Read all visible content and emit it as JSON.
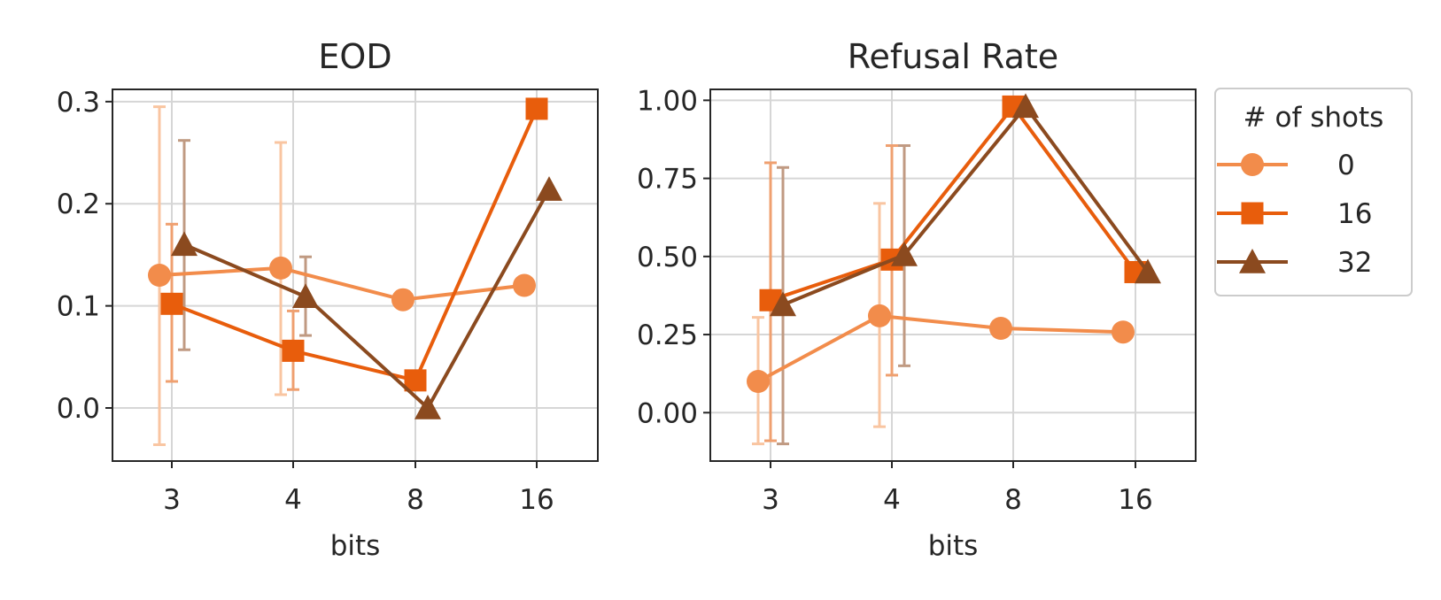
{
  "chart_data": [
    {
      "type": "line",
      "title": "EOD",
      "xlabel": "bits",
      "ylabel": "",
      "categories": [
        "3",
        "4",
        "8",
        "16"
      ],
      "ylim": [
        -0.052,
        0.312
      ],
      "yticks": [
        0.0,
        0.1,
        0.2,
        0.3
      ],
      "ytick_labels": [
        "0.0",
        "0.1",
        "0.2",
        "0.3"
      ],
      "grid": true,
      "series": [
        {
          "name": "0",
          "marker": "circle",
          "color": "#f28c4b",
          "err_color": "#f9c5a1",
          "values": [
            0.13,
            0.137,
            0.106,
            0.12
          ],
          "err_low": [
            -0.036,
            0.013,
            null,
            null
          ],
          "err_high": [
            0.295,
            0.26,
            null,
            null
          ]
        },
        {
          "name": "16",
          "marker": "square",
          "color": "#e85d0c",
          "err_color": "#efa070",
          "values": [
            0.102,
            0.056,
            0.027,
            0.293
          ],
          "err_low": [
            0.026,
            0.018,
            null,
            null
          ],
          "err_high": [
            0.18,
            0.095,
            null,
            null
          ]
        },
        {
          "name": "32",
          "marker": "triangle",
          "color": "#8b4a1f",
          "err_color": "#c09a82",
          "values": [
            0.16,
            0.109,
            0.0,
            0.214
          ],
          "err_low": [
            0.057,
            0.071,
            null,
            null
          ],
          "err_high": [
            0.262,
            0.148,
            null,
            null
          ]
        }
      ]
    },
    {
      "type": "line",
      "title": "Refusal Rate",
      "xlabel": "bits",
      "ylabel": "",
      "categories": [
        "3",
        "4",
        "8",
        "16"
      ],
      "ylim": [
        -0.155,
        1.035
      ],
      "yticks": [
        0.0,
        0.25,
        0.5,
        0.75,
        1.0
      ],
      "ytick_labels": [
        "0.00",
        "0.25",
        "0.50",
        "0.75",
        "1.00"
      ],
      "grid": true,
      "series": [
        {
          "name": "0",
          "marker": "circle",
          "color": "#f28c4b",
          "err_color": "#f9c5a1",
          "values": [
            0.1,
            0.31,
            0.27,
            0.258
          ],
          "err_low": [
            -0.1,
            -0.045,
            null,
            null
          ],
          "err_high": [
            0.305,
            0.67,
            null,
            null
          ]
        },
        {
          "name": "16",
          "marker": "square",
          "color": "#e85d0c",
          "err_color": "#efa070",
          "values": [
            0.36,
            0.49,
            0.98,
            0.45
          ],
          "err_low": [
            -0.09,
            0.12,
            null,
            null
          ],
          "err_high": [
            0.8,
            0.855,
            null,
            null
          ]
        },
        {
          "name": "32",
          "marker": "triangle",
          "color": "#8b4a1f",
          "err_color": "#c09a82",
          "values": [
            0.345,
            0.505,
            0.98,
            0.45
          ],
          "err_low": [
            -0.1,
            0.15,
            null,
            null
          ],
          "err_high": [
            0.785,
            0.855,
            null,
            null
          ]
        }
      ]
    }
  ],
  "legend": {
    "title": "# of shots",
    "placement": "right, outside",
    "entries": [
      {
        "label": "0",
        "marker": "circle",
        "color": "#f28c4b"
      },
      {
        "label": "16",
        "marker": "square",
        "color": "#e85d0c"
      },
      {
        "label": "32",
        "marker": "triangle",
        "color": "#8b4a1f"
      }
    ]
  }
}
